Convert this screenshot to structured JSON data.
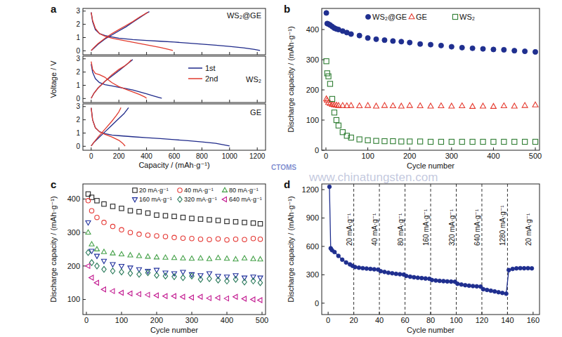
{
  "chart_data": [
    {
      "type": "line",
      "title": "a",
      "annotations": [
        "WS₂@GE"
      ],
      "xlim": [
        -60,
        1260
      ],
      "xticks": [
        0,
        200,
        400,
        600,
        800,
        1000,
        1200
      ],
      "ylim": [
        -0.3,
        3.2
      ],
      "yticks": [
        0,
        1,
        2,
        3
      ],
      "tick_labels": "y",
      "series": [
        {
          "color": "#1f2a8a",
          "x": [
            0,
            10,
            30,
            60,
            100,
            150,
            200,
            300,
            400,
            500,
            600,
            700,
            800,
            900,
            1000,
            1100,
            1180,
            1220,
            null,
            0,
            20,
            50,
            100,
            150,
            200,
            250,
            300,
            350,
            400,
            420
          ],
          "values": [
            2.9,
            2.2,
            1.6,
            1.3,
            1.15,
            1.05,
            0.95,
            0.85,
            0.78,
            0.72,
            0.66,
            0.58,
            0.5,
            0.42,
            0.33,
            0.22,
            0.1,
            0.02,
            null,
            0.02,
            0.2,
            0.5,
            0.9,
            1.2,
            1.5,
            1.8,
            2.15,
            2.5,
            2.85,
            2.95
          ]
        },
        {
          "color": "#e03a2e",
          "x": [
            0,
            10,
            30,
            60,
            100,
            150,
            200,
            300,
            400,
            500,
            560,
            590,
            null,
            0,
            20,
            50,
            100,
            150,
            200,
            250,
            300,
            350,
            400,
            410
          ],
          "values": [
            2.9,
            2.3,
            1.7,
            1.3,
            1.1,
            0.95,
            0.85,
            0.65,
            0.45,
            0.25,
            0.1,
            0.02,
            null,
            0.02,
            0.25,
            0.55,
            0.95,
            1.3,
            1.6,
            1.9,
            2.2,
            2.55,
            2.85,
            2.92
          ]
        }
      ]
    },
    {
      "type": "line",
      "annotations": [
        "WS₂"
      ],
      "y_label": "Voltage / V",
      "legend": "right",
      "xlim": [
        -60,
        1260
      ],
      "xticks": [
        0,
        200,
        400,
        600,
        800,
        1000,
        1200
      ],
      "ylim": [
        -0.3,
        3.2
      ],
      "yticks": [
        0,
        1,
        2,
        3
      ],
      "tick_labels": "y",
      "series": [
        {
          "name": "1st",
          "color": "#1f2a8a",
          "x": [
            0,
            10,
            30,
            60,
            100,
            150,
            200,
            250,
            300,
            350,
            400,
            450,
            490,
            510,
            null,
            0,
            20,
            50,
            100,
            150,
            200,
            230,
            260,
            290,
            300
          ],
          "values": [
            2.6,
            2.0,
            1.5,
            1.2,
            1.05,
            0.95,
            0.85,
            0.75,
            0.65,
            0.5,
            0.35,
            0.2,
            0.08,
            0.02,
            null,
            0.02,
            0.4,
            0.8,
            1.3,
            1.7,
            2.1,
            2.35,
            2.6,
            2.85,
            2.95
          ]
        },
        {
          "name": "2nd",
          "color": "#e03a2e",
          "x": [
            0,
            10,
            30,
            60,
            100,
            150,
            200,
            250,
            300,
            350,
            390,
            400,
            null,
            0,
            20,
            50,
            100,
            150,
            200,
            240,
            270,
            290
          ],
          "values": [
            2.8,
            2.2,
            1.9,
            1.8,
            1.6,
            1.2,
            0.9,
            0.7,
            0.5,
            0.3,
            0.1,
            0.02,
            null,
            0.02,
            0.4,
            0.8,
            1.3,
            1.8,
            2.2,
            2.45,
            2.7,
            2.92
          ]
        }
      ]
    },
    {
      "type": "line",
      "annotations": [
        "GE"
      ],
      "x_label": "Capacity / (mAh·g⁻¹)",
      "xlim": [
        -60,
        1260
      ],
      "xticks": [
        0,
        200,
        400,
        600,
        800,
        1000,
        1200
      ],
      "ylim": [
        -0.3,
        3.2
      ],
      "yticks": [
        0,
        1,
        2,
        3
      ],
      "series": [
        {
          "color": "#1f2a8a",
          "x": [
            0,
            10,
            30,
            60,
            100,
            150,
            200,
            300,
            400,
            500,
            600,
            700,
            800,
            900,
            960,
            1000,
            null,
            0,
            20,
            50,
            100,
            150,
            200,
            240,
            270
          ],
          "values": [
            2.9,
            2.0,
            1.4,
            1.1,
            0.95,
            0.85,
            0.8,
            0.72,
            0.65,
            0.58,
            0.5,
            0.42,
            0.33,
            0.22,
            0.1,
            0.02,
            null,
            0.02,
            0.3,
            0.6,
            1.1,
            1.6,
            2.1,
            2.5,
            2.92
          ]
        },
        {
          "color": "#e03a2e",
          "x": [
            0,
            10,
            30,
            60,
            100,
            150,
            200,
            230,
            245,
            null,
            0,
            20,
            50,
            100,
            150,
            180,
            200,
            215
          ],
          "values": [
            2.9,
            2.0,
            1.4,
            1.1,
            0.9,
            0.7,
            0.45,
            0.2,
            0.02,
            null,
            0.02,
            0.3,
            0.7,
            1.3,
            1.9,
            2.3,
            2.6,
            2.92
          ]
        }
      ]
    },
    {
      "type": "scatter",
      "title": "b",
      "x_label": "Cycle number",
      "y_label": "Discharge capacity / (mAh·g⁻¹)",
      "legend": "top",
      "x": [
        1,
        3,
        6,
        10,
        15,
        20,
        25,
        30,
        40,
        50,
        60,
        80,
        100,
        120,
        140,
        160,
        180,
        200,
        225,
        250,
        275,
        300,
        325,
        350,
        375,
        400,
        425,
        450,
        475,
        500
      ],
      "xlim": [
        -10,
        510
      ],
      "xticks": [
        0,
        100,
        200,
        300,
        400,
        500
      ],
      "ylim": [
        0,
        470
      ],
      "yticks": [
        0,
        100,
        200,
        300,
        400
      ],
      "series": [
        {
          "name": "WS₂@GE",
          "color": "#1f2f8f",
          "marker": "circle",
          "values": [
            455,
            420,
            418,
            415,
            410,
            405,
            402,
            400,
            395,
            390,
            385,
            380,
            372,
            368,
            365,
            362,
            360,
            357,
            352,
            350,
            347,
            343,
            340,
            338,
            336,
            334,
            333,
            330,
            328,
            326
          ]
        },
        {
          "name": "GE",
          "color": "#e53a2f",
          "marker": "triangle-open",
          "values": [
            170,
            165,
            158,
            155,
            152,
            150,
            149,
            148,
            148,
            147,
            148,
            147,
            148,
            146,
            148,
            147,
            146,
            148,
            147,
            146,
            147,
            146,
            147,
            145,
            146,
            145,
            147,
            146,
            148,
            150
          ]
        },
        {
          "name": "WS₂",
          "color": "#2e7d32",
          "marker": "square-open",
          "values": [
            295,
            255,
            245,
            220,
            170,
            125,
            100,
            82,
            60,
            48,
            42,
            36,
            33,
            31,
            30,
            30,
            29,
            29,
            29,
            28,
            28,
            28,
            28,
            28,
            28,
            28,
            28,
            28,
            28,
            28
          ]
        }
      ]
    },
    {
      "type": "scatter",
      "title": "c",
      "x_label": "Cycle number",
      "y_label": "Discharge capacity / (mAh·g⁻¹)",
      "legend": "top",
      "x": [
        5,
        15,
        30,
        50,
        75,
        100,
        125,
        150,
        175,
        200,
        225,
        250,
        275,
        300,
        325,
        350,
        375,
        400,
        425,
        450,
        475,
        495
      ],
      "xlim": [
        -10,
        510
      ],
      "xticks": [
        0,
        100,
        200,
        300,
        400,
        500
      ],
      "ylim": [
        55,
        445
      ],
      "yticks": [
        100,
        200,
        300,
        400
      ],
      "series": [
        {
          "name": "20 mA·g⁻¹",
          "color": "#222222",
          "marker": "square-open",
          "values": [
            415,
            405,
            395,
            385,
            378,
            372,
            365,
            362,
            358,
            352,
            350,
            348,
            345,
            342,
            340,
            338,
            336,
            333,
            332,
            330,
            328,
            326
          ]
        },
        {
          "name": "40 mA·g⁻¹",
          "color": "#e53935",
          "marker": "circle-open",
          "values": [
            395,
            365,
            345,
            330,
            318,
            308,
            300,
            295,
            292,
            290,
            288,
            285,
            283,
            282,
            280,
            279,
            281,
            278,
            280,
            279,
            282,
            280
          ]
        },
        {
          "name": "80 mA·g⁻¹",
          "color": "#43a047",
          "marker": "triangle-open",
          "values": [
            300,
            265,
            250,
            242,
            238,
            235,
            232,
            230,
            228,
            226,
            225,
            224,
            223,
            222,
            223,
            221,
            224,
            222,
            220,
            223,
            221,
            220
          ]
        },
        {
          "name": "160 mA·g⁻¹",
          "color": "#1f2f9c",
          "marker": "triangle-down-open",
          "values": [
            330,
            245,
            230,
            215,
            205,
            200,
            195,
            190,
            185,
            188,
            180,
            178,
            182,
            175,
            172,
            178,
            170,
            168,
            172,
            165,
            168,
            165
          ]
        },
        {
          "name": "320 mA·g⁻¹",
          "color": "#2a7a5a",
          "marker": "diamond-open",
          "values": [
            240,
            210,
            200,
            190,
            185,
            182,
            178,
            175,
            180,
            172,
            170,
            168,
            165,
            170,
            160,
            162,
            158,
            155,
            160,
            152,
            155,
            150
          ]
        },
        {
          "name": "640 mA·g⁻¹",
          "color": "#c2188f",
          "marker": "triangle-left-open",
          "values": [
            200,
            165,
            150,
            130,
            125,
            120,
            118,
            116,
            114,
            112,
            110,
            110,
            108,
            106,
            108,
            104,
            105,
            103,
            108,
            102,
            100,
            98
          ]
        }
      ]
    },
    {
      "type": "line",
      "title": "d",
      "x_label": "Cycle number",
      "y_label": "Discharge capacity / (mAh·g⁻¹)",
      "x": [
        1,
        2,
        3,
        5,
        8,
        11,
        14,
        17,
        19,
        21,
        24,
        27,
        30,
        33,
        36,
        39,
        41,
        44,
        47,
        50,
        53,
        56,
        59,
        61,
        64,
        67,
        70,
        73,
        76,
        79,
        81,
        84,
        87,
        90,
        93,
        96,
        99,
        101,
        104,
        107,
        110,
        113,
        116,
        119,
        121,
        124,
        127,
        130,
        133,
        136,
        139,
        141,
        144,
        147,
        150,
        153,
        156,
        159
      ],
      "xlim": [
        -5,
        165
      ],
      "xticks": [
        0,
        20,
        40,
        60,
        80,
        100,
        120,
        140,
        160
      ],
      "ylim": [
        -120,
        1260
      ],
      "yticks": [
        0,
        300,
        600,
        900,
        1200
      ],
      "segments": [
        {
          "label": "20 mA·g⁻¹",
          "start": 0,
          "end": 20
        },
        {
          "label": "40 mA·g⁻¹",
          "start": 20,
          "end": 40
        },
        {
          "label": "80 mA·g⁻¹",
          "start": 40,
          "end": 60
        },
        {
          "label": "160 mA·g⁻¹",
          "start": 60,
          "end": 80
        },
        {
          "label": "320 mA·g⁻¹",
          "start": 80,
          "end": 100
        },
        {
          "label": "640 mA·g⁻¹",
          "start": 100,
          "end": 120
        },
        {
          "label": "1280 mA·g⁻¹",
          "start": 120,
          "end": 140
        },
        {
          "label": "20 mA·g⁻¹",
          "start": 140,
          "end": 160
        }
      ],
      "series": [
        {
          "color": "#1f2f8f",
          "marker": "circle",
          "line_style": "solid",
          "values": [
            1230,
            580,
            560,
            540,
            500,
            460,
            430,
            410,
            395,
            382,
            375,
            370,
            366,
            362,
            358,
            355,
            338,
            330,
            322,
            316,
            310,
            306,
            302,
            288,
            280,
            274,
            269,
            265,
            261,
            258,
            245,
            240,
            236,
            233,
            230,
            228,
            226,
            205,
            197,
            190,
            185,
            181,
            178,
            175,
            148,
            140,
            132,
            124,
            116,
            108,
            100,
            350,
            362,
            368,
            370,
            369,
            370,
            368
          ]
        }
      ]
    }
  ],
  "watermark": {
    "text": "www.chinatungsten.com",
    "logo": "CTOMS"
  }
}
